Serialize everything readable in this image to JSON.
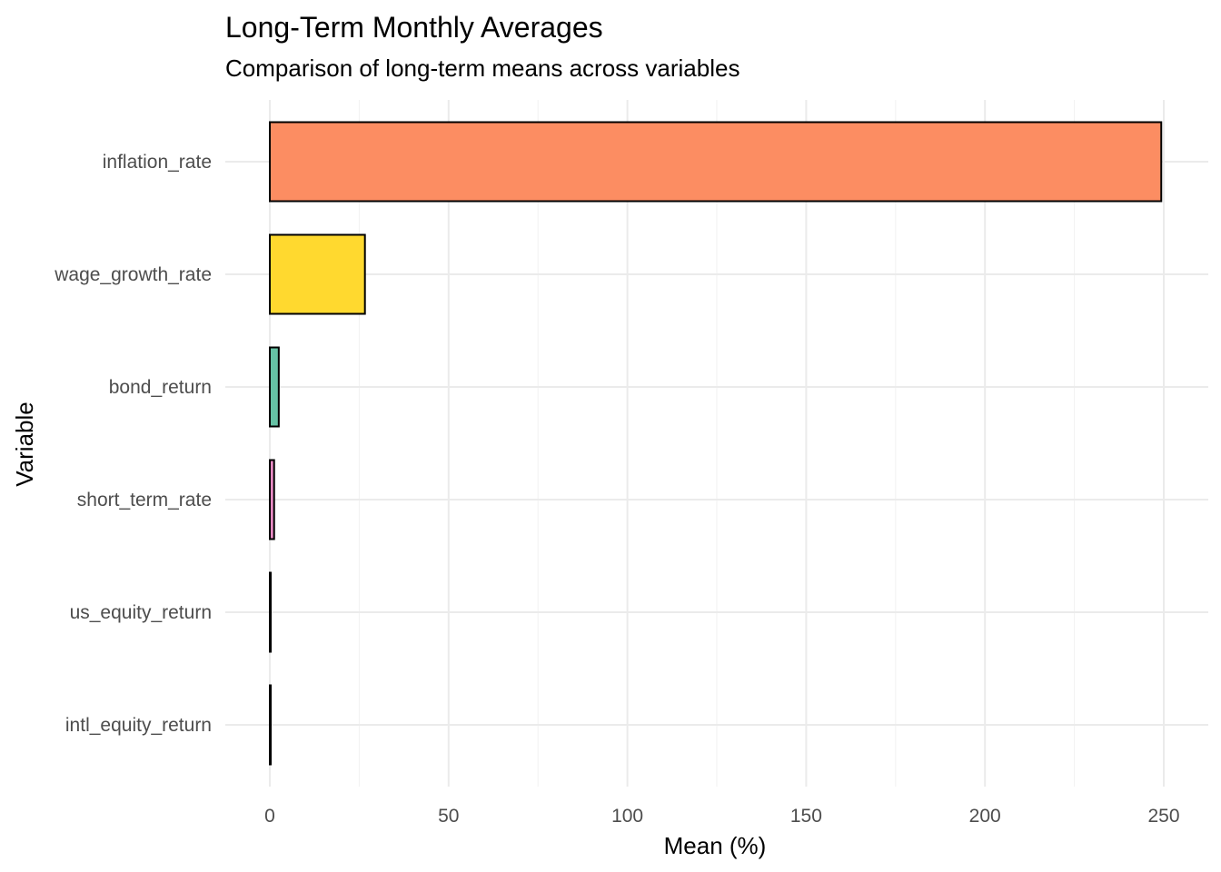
{
  "chart_data": {
    "type": "bar",
    "orientation": "horizontal",
    "title": "Long-Term Monthly Averages",
    "subtitle": "Comparison of long-term means across variables",
    "xlabel": "Mean (%)",
    "ylabel": "Variable",
    "xlim": [
      0,
      250
    ],
    "xticks": [
      "0",
      "50",
      "100",
      "150",
      "200",
      "250"
    ],
    "grid": true,
    "legend": false,
    "categories": [
      "inflation_rate",
      "wage_growth_rate",
      "bond_return",
      "short_term_rate",
      "us_equity_return",
      "intl_equity_return"
    ],
    "values": [
      249.3,
      26.6,
      2.5,
      1.2,
      0.2,
      0.2
    ],
    "colors": [
      "#fc8d62",
      "#ffd92f",
      "#66c2a5",
      "#e78ac3",
      "#a6d854",
      "#8da0cb"
    ]
  }
}
